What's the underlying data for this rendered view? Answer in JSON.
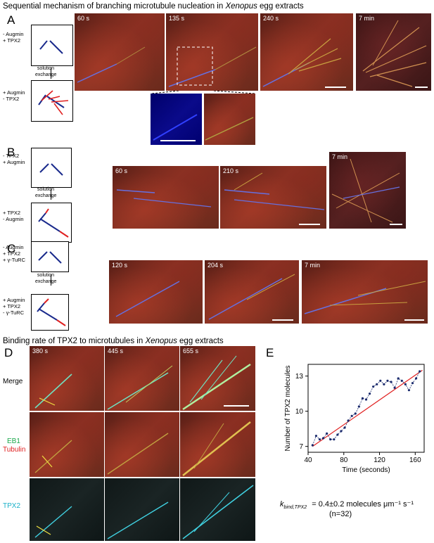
{
  "titles": {
    "top_prefix": "Sequential mechanism of branching microtubule nucleation in ",
    "top_italic": "Xenopus",
    "top_suffix": " egg extracts",
    "mid_prefix": "Binding rate of TPX2 to microtubules in ",
    "mid_italic": "Xenopus",
    "mid_suffix": " egg extracts"
  },
  "panels": {
    "A": {
      "label": "A",
      "before": [
        "- Augmin",
        "+ TPX2"
      ],
      "exchange": [
        "solution",
        "exchange"
      ],
      "after": [
        "+ Augmin",
        "- TPX2"
      ],
      "times": [
        "60 s",
        "135 s",
        "240 s",
        "7 min"
      ]
    },
    "B": {
      "label": "B",
      "before": [
        "- TPX2",
        "+ Augmin"
      ],
      "exchange": [
        "solution",
        "exchange"
      ],
      "after": [
        "+ TPX2",
        "- Augmin"
      ],
      "times": [
        "60 s",
        "210 s",
        "7 min"
      ]
    },
    "C": {
      "label": "C",
      "before": [
        "- Augmin",
        "+ TPX2",
        "+ γ-TuRC"
      ],
      "exchange": [
        "solution",
        "exchange"
      ],
      "after": [
        "+ Augmin",
        "+ TPX2",
        "- γ-TuRC"
      ],
      "times": [
        "120 s",
        "204 s",
        "7 min"
      ]
    },
    "D": {
      "label": "D",
      "times": [
        "380 s",
        "445 s",
        "655 s"
      ],
      "row_merge": "Merge",
      "row_eb1": "EB1",
      "row_tubulin": "Tubulin",
      "row_tpx2": "TPX2"
    },
    "E": {
      "label": "E",
      "k_label": "k",
      "k_sub": "bind,TPX2",
      "k_value": "= 0.4±0.2 molecules μm⁻¹ s⁻¹",
      "n": "(n=32)"
    }
  },
  "chart_data": {
    "type": "line",
    "xlabel": "Time (seconds)",
    "ylabel": "Number of TPX2 molecules",
    "xlim": [
      40,
      170
    ],
    "ylim": [
      6.5,
      14
    ],
    "xticks": [
      40,
      80,
      120,
      160
    ],
    "yticks": [
      7,
      10,
      13
    ],
    "series": [
      {
        "x": [
          45,
          49,
          53,
          57,
          61,
          65,
          69,
          73,
          77,
          81,
          85,
          89,
          93,
          97,
          101,
          105,
          109,
          113,
          117,
          121,
          125,
          129,
          133,
          137,
          141,
          145,
          149,
          153,
          157,
          161,
          165
        ],
        "y": [
          7.1,
          7.9,
          7.6,
          7.7,
          8.1,
          7.6,
          7.6,
          8.0,
          8.3,
          8.6,
          9.2,
          9.6,
          9.8,
          10.4,
          11.1,
          11.0,
          11.5,
          12.1,
          12.3,
          12.6,
          12.3,
          12.6,
          12.5,
          12.0,
          12.8,
          12.6,
          12.3,
          11.8,
          12.4,
          12.8,
          13.4
        ],
        "color": "#1a2a6c"
      }
    ],
    "fit": {
      "x": [
        45,
        168
      ],
      "y": [
        7.0,
        13.5
      ],
      "color": "#e02020"
    }
  }
}
